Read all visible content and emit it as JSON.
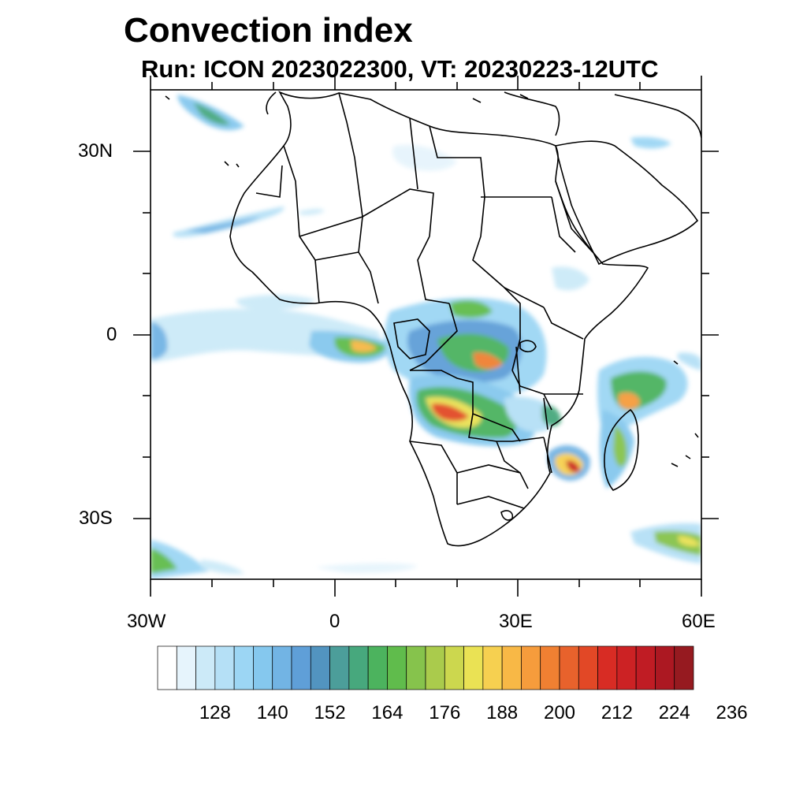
{
  "title": "Convection index",
  "subtitle": "Run: ICON 2023022300,  VT: 20230223-12UTC",
  "axes": {
    "lon_labels": [
      "30W",
      "0",
      "30E",
      "60E"
    ],
    "lat_labels": [
      "30N",
      "0",
      "30S"
    ],
    "lon_range": [
      -30,
      60
    ],
    "lat_range": [
      -40,
      40
    ]
  },
  "colorbar": {
    "colors": [
      "#ffffff",
      "#e6f4fc",
      "#cceaf8",
      "#b5e0f6",
      "#9cd6f4",
      "#85c8ee",
      "#72b4e4",
      "#5f9fd8",
      "#5294c0",
      "#4c9e9a",
      "#47a87d",
      "#4cb35e",
      "#60bc4c",
      "#86c34c",
      "#aacb4c",
      "#ccd74e",
      "#eae254",
      "#f6d050",
      "#f8b846",
      "#f69c3c",
      "#f08032",
      "#e8622c",
      "#e24826",
      "#d82c24",
      "#cc2224",
      "#c01c24",
      "#ac1822",
      "#961a20"
    ],
    "tick_labels": [
      "128",
      "140",
      "152",
      "164",
      "176",
      "188",
      "200",
      "212",
      "224",
      "236"
    ]
  }
}
